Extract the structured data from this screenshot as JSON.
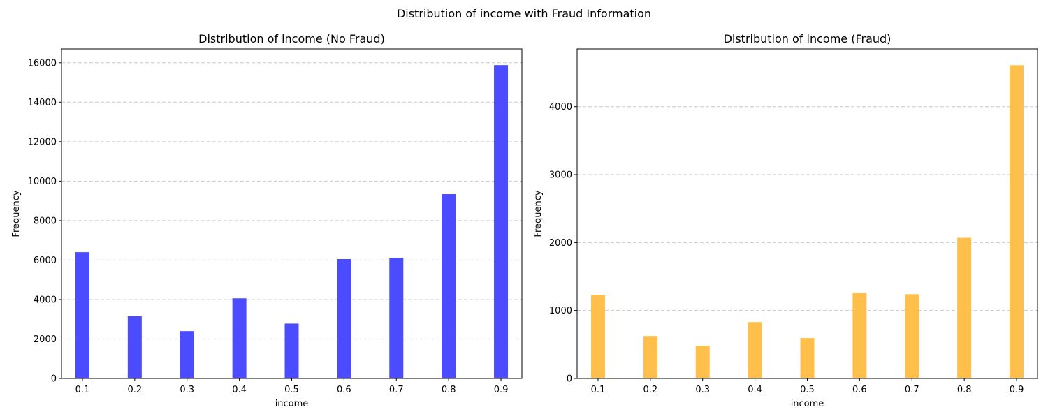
{
  "suptitle": "Distribution of income with Fraud Information",
  "chart_data": [
    {
      "type": "bar",
      "title": "Distribution of income (No Fraud)",
      "xlabel": "income",
      "ylabel": "Frequency",
      "x": [
        0.1,
        0.2,
        0.3,
        0.4,
        0.5,
        0.6,
        0.7,
        0.8,
        0.9
      ],
      "values": [
        6400,
        3150,
        2400,
        4060,
        2780,
        6050,
        6120,
        9340,
        15880
      ],
      "xlim": [
        0.06,
        0.94
      ],
      "ylim": [
        0,
        16700
      ],
      "xticks": [
        "0.1",
        "0.2",
        "0.3",
        "0.4",
        "0.5",
        "0.6",
        "0.7",
        "0.8",
        "0.9"
      ],
      "yticks": [
        0,
        2000,
        4000,
        6000,
        8000,
        10000,
        12000,
        14000,
        16000
      ],
      "color": "#4b4bff",
      "grid": "y-dashed",
      "legend": "none"
    },
    {
      "type": "bar",
      "title": "Distribution of income (Fraud)",
      "xlabel": "income",
      "ylabel": "Frequency",
      "x": [
        0.1,
        0.2,
        0.3,
        0.4,
        0.5,
        0.6,
        0.7,
        0.8,
        0.9
      ],
      "values": [
        1230,
        625,
        480,
        830,
        595,
        1260,
        1240,
        2070,
        4610
      ],
      "xlim": [
        0.06,
        0.94
      ],
      "ylim": [
        0,
        4850
      ],
      "xticks": [
        "0.1",
        "0.2",
        "0.3",
        "0.4",
        "0.5",
        "0.6",
        "0.7",
        "0.8",
        "0.9"
      ],
      "yticks": [
        0,
        1000,
        2000,
        3000,
        4000
      ],
      "color": "#ffbf4b",
      "grid": "y-dashed",
      "legend": "none"
    }
  ]
}
